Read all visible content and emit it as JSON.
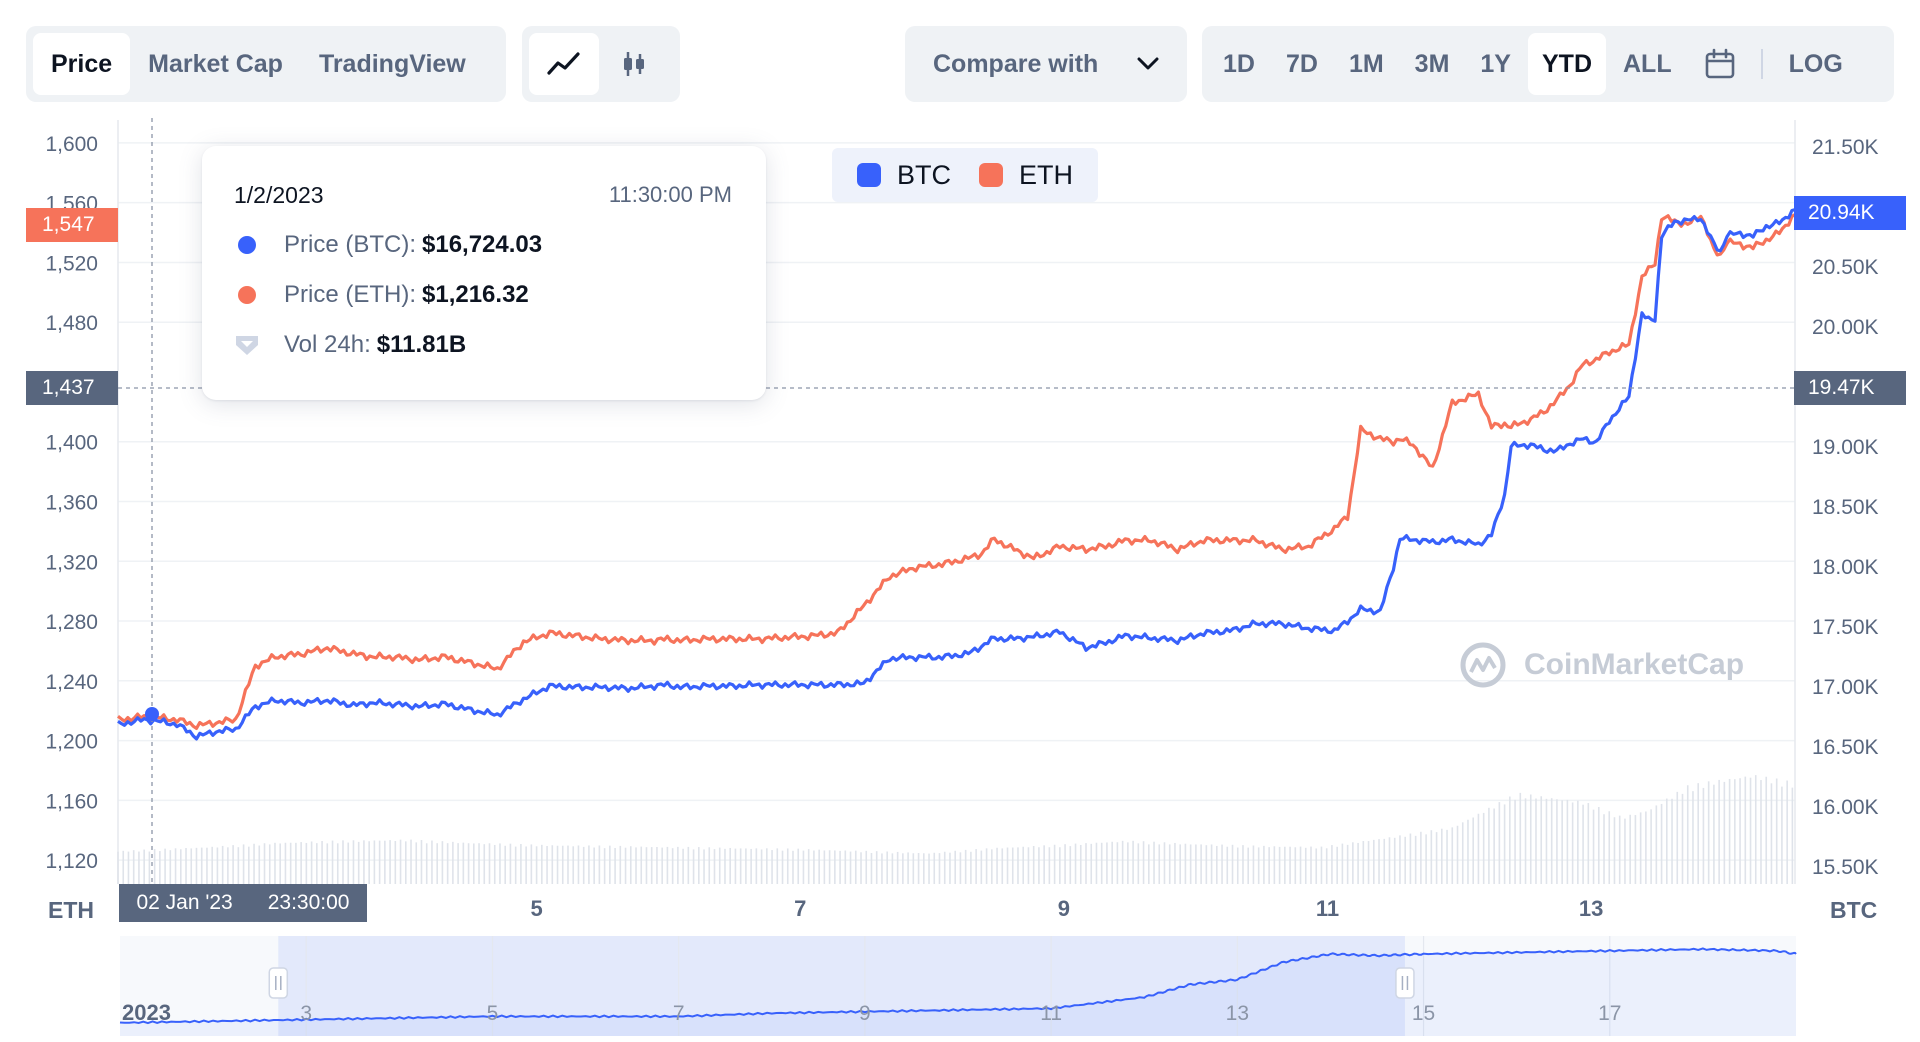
{
  "toolbar": {
    "view_tabs": [
      {
        "label": "Price",
        "active": true
      },
      {
        "label": "Market Cap",
        "active": false
      },
      {
        "label": "TradingView",
        "active": false
      }
    ],
    "chart_type_icons": [
      "line-chart-icon",
      "candlestick-icon"
    ],
    "compare": {
      "label": "Compare with",
      "icon": "chevron-down-icon"
    },
    "ranges": [
      {
        "label": "1D",
        "active": false
      },
      {
        "label": "7D",
        "active": false
      },
      {
        "label": "1M",
        "active": false
      },
      {
        "label": "3M",
        "active": false
      },
      {
        "label": "1Y",
        "active": false
      },
      {
        "label": "YTD",
        "active": true
      },
      {
        "label": "ALL",
        "active": false
      }
    ],
    "calendar_icon": "calendar-icon",
    "log_label": "LOG"
  },
  "tooltip": {
    "date": "1/2/2023",
    "time": "11:30:00 PM",
    "btc_label": "Price (BTC):",
    "btc_value": "$16,724.03",
    "eth_label": "Price (ETH):",
    "eth_value": "$1,216.32",
    "vol_label": "Vol 24h:",
    "vol_value": "$11.81B"
  },
  "legend": [
    {
      "name": "BTC",
      "color": "#3861fb"
    },
    {
      "name": "ETH",
      "color": "#f6735a"
    }
  ],
  "cursor": {
    "x_label_date": "02 Jan '23",
    "x_label_time": "23:30:00",
    "left_value": "1,437",
    "right_value": "19.47K"
  },
  "last_price": {
    "eth": "1,547",
    "btc": "20.94K"
  },
  "axis_units": {
    "left": "ETH",
    "right": "BTC"
  },
  "watermark": "CoinMarketCap",
  "chart_data": {
    "type": "line",
    "x_ticks": [
      "5",
      "7",
      "9",
      "11",
      "13"
    ],
    "left_axis": {
      "label": "ETH",
      "ticks": [
        "1,600",
        "1,560",
        "1,520",
        "1,480",
        "1,437",
        "1,400",
        "1,360",
        "1,320",
        "1,280",
        "1,240",
        "1,200",
        "1,160",
        "1,120"
      ],
      "range": [
        1104,
        1614
      ]
    },
    "right_axis": {
      "label": "BTC",
      "ticks": [
        "21.50K",
        "20.94K",
        "20.50K",
        "20.00K",
        "19.47K",
        "19.00K",
        "18.50K",
        "18.00K",
        "17.50K",
        "17.00K",
        "16.50K",
        "16.00K",
        "15.50K"
      ],
      "range": [
        15350,
        21700
      ]
    },
    "x_domain_days": [
      1.8,
      14.62
    ],
    "series": [
      {
        "name": "BTC",
        "axis": "right",
        "color": "#3861fb",
        "x": [
          1.8,
          2.0,
          2.15,
          2.25,
          2.4,
          2.55,
          2.7,
          2.85,
          3.0,
          3.2,
          3.4,
          3.6,
          3.75,
          3.9,
          4.1,
          4.3,
          4.5,
          4.7,
          4.9,
          5.1,
          5.3,
          5.5,
          5.7,
          5.9,
          6.0,
          6.1,
          6.3,
          6.5,
          6.7,
          6.9,
          7.1,
          7.3,
          7.5,
          7.7,
          7.9,
          8.1,
          8.3,
          8.4,
          8.5,
          8.6,
          8.8,
          9.0,
          9.2,
          9.35,
          9.5,
          9.7,
          9.9,
          10.1,
          10.3,
          10.5,
          10.7,
          10.9,
          11.1,
          11.2,
          11.3,
          11.45,
          11.55,
          11.6,
          11.7,
          11.85,
          12.0,
          12.2,
          12.3,
          12.4,
          12.45,
          12.6,
          12.7,
          12.8,
          12.9,
          13.0,
          13.1,
          13.2,
          13.35,
          13.45,
          13.5,
          13.55,
          13.6,
          13.7,
          13.8,
          13.9,
          14.0,
          14.05,
          14.1,
          14.2,
          14.3,
          14.4,
          14.5,
          14.62
        ],
        "y": [
          16680,
          16720,
          16700,
          16680,
          16580,
          16620,
          16640,
          16830,
          16880,
          16860,
          16880,
          16840,
          16860,
          16850,
          16830,
          16850,
          16800,
          16760,
          16890,
          17000,
          16990,
          16990,
          16980,
          17000,
          17010,
          16990,
          17000,
          17000,
          17010,
          17010,
          17010,
          17010,
          17020,
          17230,
          17240,
          17240,
          17270,
          17330,
          17400,
          17390,
          17410,
          17450,
          17320,
          17360,
          17420,
          17400,
          17380,
          17440,
          17460,
          17520,
          17520,
          17480,
          17460,
          17540,
          17640,
          17620,
          17990,
          18230,
          18220,
          18200,
          18220,
          18180,
          18260,
          18590,
          19000,
          19010,
          18970,
          18960,
          19020,
          19060,
          19030,
          19210,
          19410,
          20100,
          20050,
          20060,
          20750,
          20870,
          20880,
          20900,
          20680,
          20620,
          20760,
          20770,
          20750,
          20830,
          20860,
          20970
        ]
      },
      {
        "name": "ETH",
        "axis": "left",
        "color": "#f6735a",
        "x": [
          1.8,
          2.0,
          2.15,
          2.25,
          2.4,
          2.55,
          2.7,
          2.85,
          3.0,
          3.2,
          3.4,
          3.6,
          3.75,
          3.9,
          4.1,
          4.3,
          4.5,
          4.7,
          4.9,
          5.1,
          5.3,
          5.5,
          5.7,
          5.9,
          6.0,
          6.1,
          6.3,
          6.5,
          6.7,
          6.9,
          7.1,
          7.3,
          7.5,
          7.7,
          7.9,
          8.1,
          8.3,
          8.4,
          8.5,
          8.6,
          8.8,
          9.0,
          9.2,
          9.35,
          9.5,
          9.7,
          9.9,
          10.1,
          10.3,
          10.5,
          10.7,
          10.9,
          11.1,
          11.2,
          11.3,
          11.45,
          11.55,
          11.6,
          11.7,
          11.85,
          12.0,
          12.2,
          12.3,
          12.4,
          12.45,
          12.6,
          12.7,
          12.8,
          12.9,
          13.0,
          13.1,
          13.2,
          13.35,
          13.45,
          13.5,
          13.55,
          13.6,
          13.7,
          13.8,
          13.9,
          14.0,
          14.05,
          14.1,
          14.2,
          14.3,
          14.4,
          14.5,
          14.62
        ],
        "y": [
          1214,
          1216,
          1215,
          1214,
          1210,
          1212,
          1214,
          1250,
          1256,
          1258,
          1262,
          1258,
          1256,
          1256,
          1254,
          1256,
          1252,
          1248,
          1266,
          1272,
          1270,
          1268,
          1267,
          1267,
          1268,
          1267,
          1268,
          1268,
          1268,
          1269,
          1270,
          1272,
          1290,
          1310,
          1316,
          1318,
          1322,
          1325,
          1335,
          1330,
          1322,
          1330,
          1328,
          1330,
          1334,
          1334,
          1328,
          1334,
          1334,
          1334,
          1328,
          1330,
          1342,
          1350,
          1408,
          1402,
          1400,
          1402,
          1398,
          1382,
          1426,
          1432,
          1410,
          1412,
          1410,
          1415,
          1420,
          1428,
          1438,
          1452,
          1455,
          1460,
          1465,
          1510,
          1515,
          1520,
          1550,
          1548,
          1545,
          1552,
          1528,
          1525,
          1534,
          1532,
          1530,
          1535,
          1540,
          1552
        ]
      }
    ],
    "volume": {
      "x": [
        1.8,
        2.5,
        3.0,
        3.5,
        4.0,
        4.5,
        5.0,
        5.5,
        6.0,
        6.5,
        7.0,
        7.5,
        8.0,
        8.5,
        9.0,
        9.5,
        10.0,
        10.5,
        11.0,
        11.5,
        12.0,
        12.3,
        12.5,
        13.0,
        13.3,
        13.5,
        13.8,
        14.0,
        14.3,
        14.62
      ],
      "values": [
        3.2,
        3.6,
        4.0,
        4.2,
        4.3,
        4.0,
        3.8,
        3.7,
        3.6,
        3.5,
        3.4,
        3.2,
        3.0,
        3.5,
        3.8,
        4.2,
        3.9,
        3.7,
        3.6,
        4.5,
        5.5,
        7.5,
        8.8,
        8.0,
        6.5,
        7.2,
        9.5,
        10.0,
        10.6,
        9.8
      ]
    },
    "navigator": {
      "ticks": [
        "2023",
        "3",
        "5",
        "7",
        "9",
        "11",
        "13",
        "15",
        "17"
      ],
      "selection": [
        2.7,
        14.8
      ],
      "domain_days": [
        1.0,
        19.0
      ],
      "x": [
        1.0,
        2.0,
        3.0,
        4.0,
        5.0,
        6.0,
        7.0,
        8.0,
        9.0,
        10.0,
        11.0,
        12.0,
        12.5,
        13.0,
        13.5,
        14.0,
        14.5,
        15.0,
        16.0,
        17.0,
        18.0,
        18.8,
        19.0
      ],
      "y": [
        16.6,
        16.7,
        16.8,
        16.9,
        17.0,
        17.0,
        17.0,
        17.2,
        17.3,
        17.4,
        17.5,
        18.2,
        19.0,
        19.3,
        20.4,
        20.9,
        20.8,
        20.9,
        21.0,
        21.1,
        21.2,
        21.1,
        20.9
      ]
    }
  }
}
